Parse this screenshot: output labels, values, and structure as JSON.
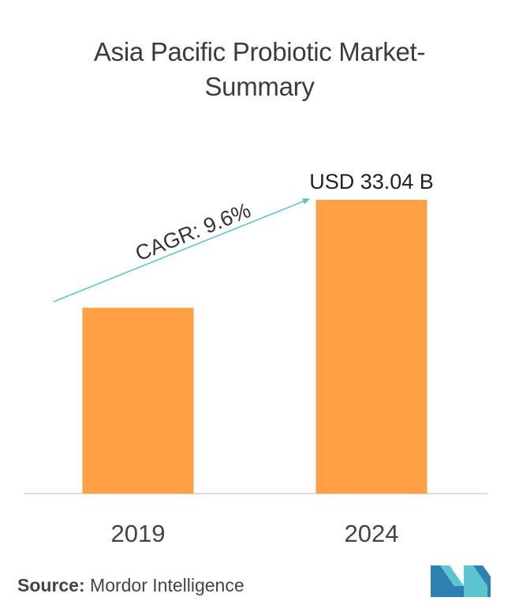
{
  "chart_data": {
    "type": "bar",
    "title_line1": "Asia Pacific Probiotic  Market-",
    "title_line2": "Summary",
    "categories": [
      "2019",
      "2024"
    ],
    "values": [
      20.9,
      33.04
    ],
    "value_labels": [
      "",
      "USD 33.04 B"
    ],
    "ylim": [
      0,
      33.04
    ],
    "annotation": "CAGR: 9.6%",
    "bar_color": "#ffa046",
    "arrow_color": "#5bc0c8",
    "grid": false,
    "legend": "none"
  },
  "source": {
    "label": "Source:",
    "text": "Mordor Intelligence"
  },
  "logo": {
    "icon": "mordor-intelligence-logo",
    "colors": [
      "#2f7fb0",
      "#5bc6cf"
    ]
  }
}
